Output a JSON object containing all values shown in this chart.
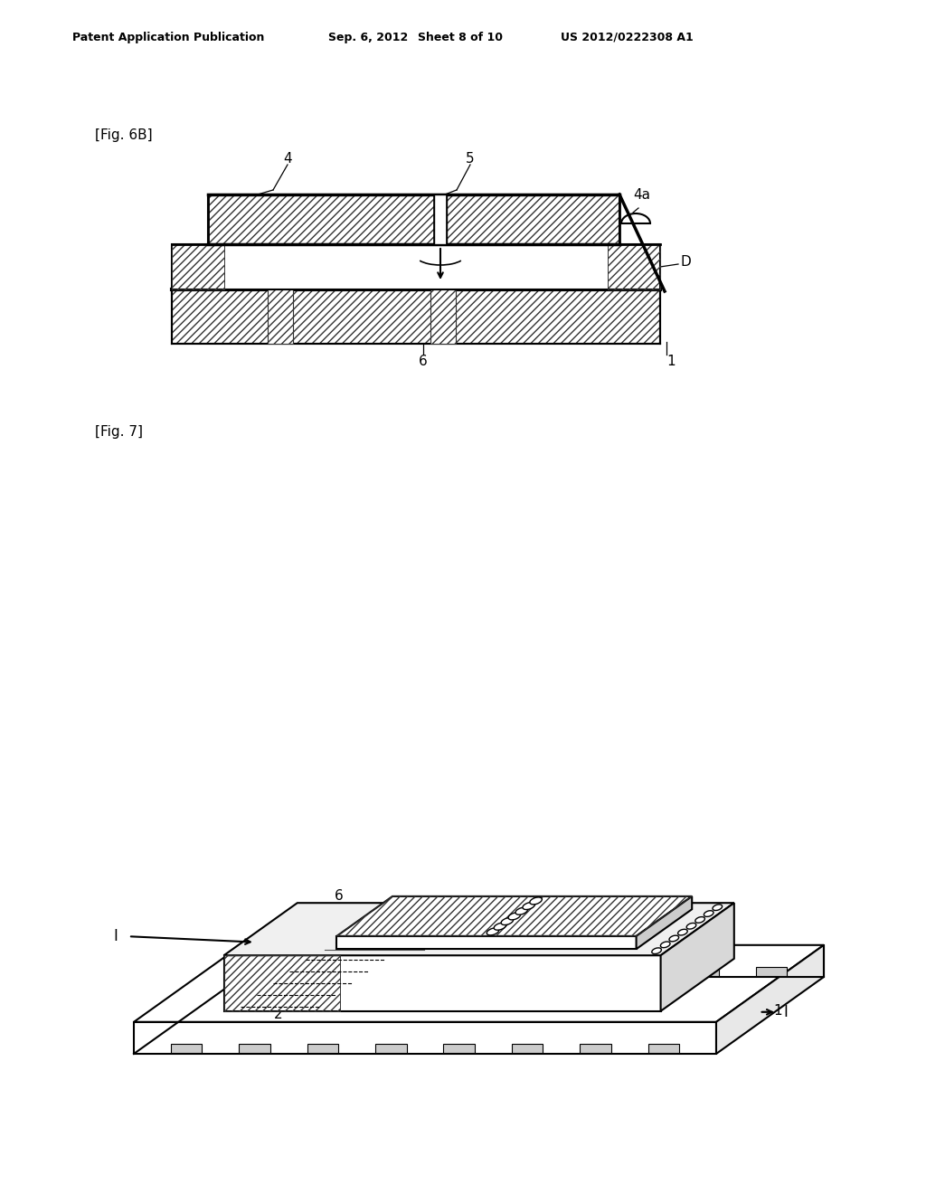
{
  "bg_color": "#ffffff",
  "header_text": "Patent Application Publication",
  "header_date": "Sep. 6, 2012",
  "header_sheet": "Sheet 8 of 10",
  "header_patent": "US 2012/0222308 A1",
  "fig6b_label": "[Fig. 6B]",
  "fig7_label": "[Fig. 7]",
  "line_color": "#000000"
}
